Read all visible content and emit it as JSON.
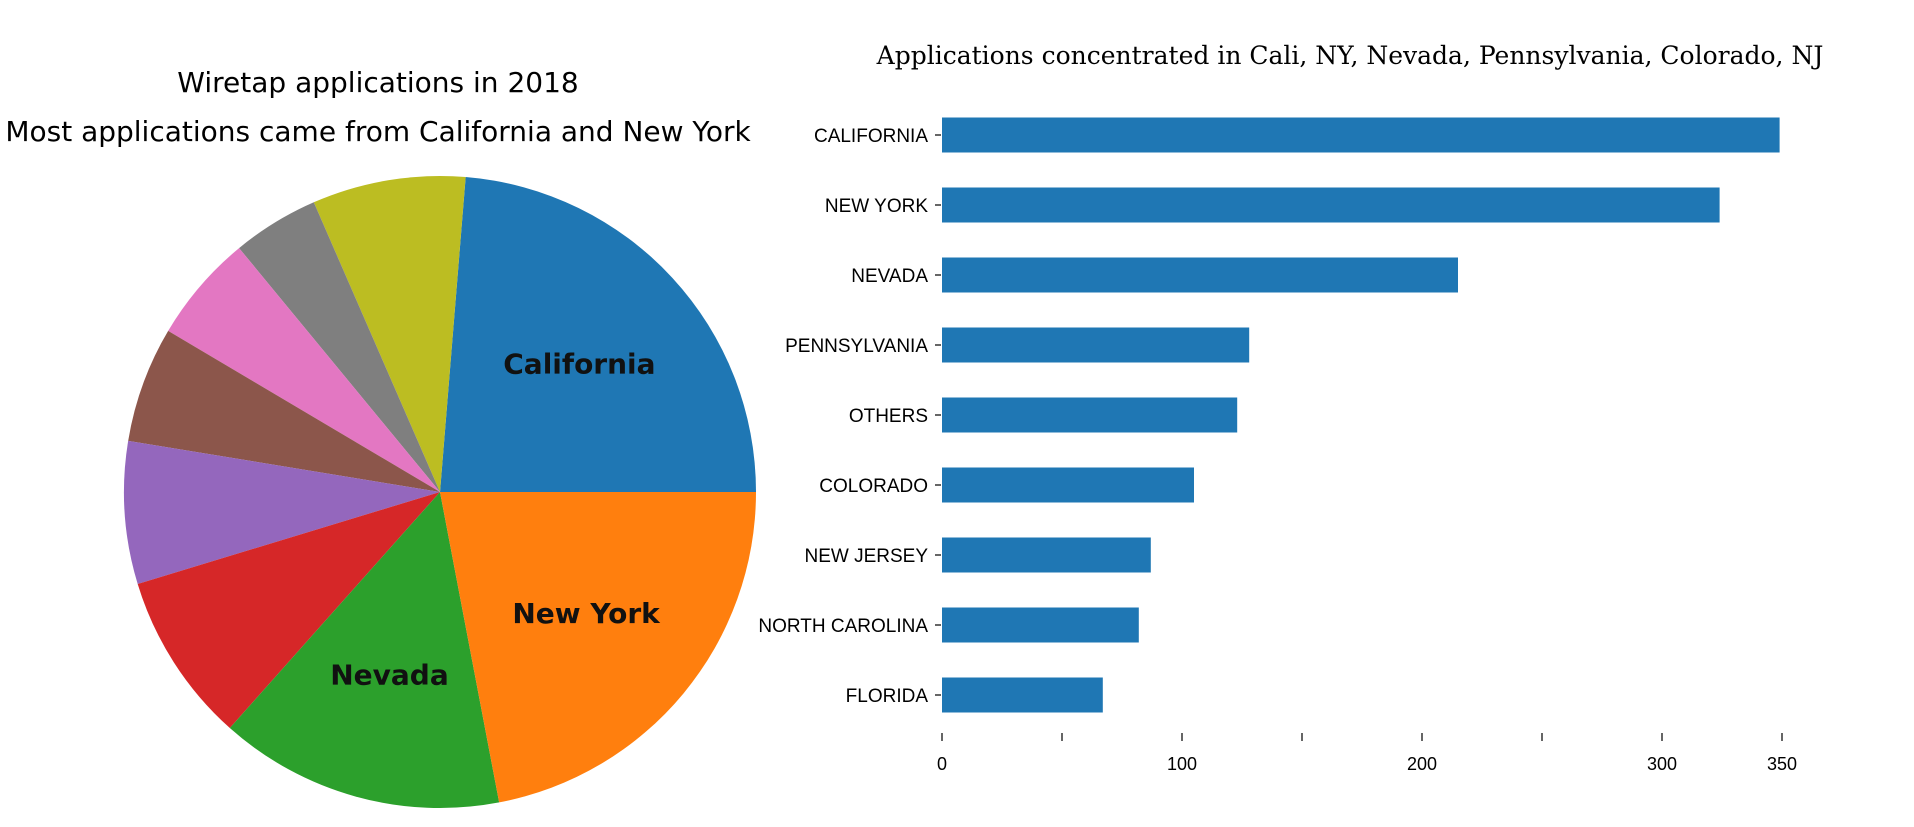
{
  "chart_data": [
    {
      "type": "pie",
      "title": "Wiretap applications in 2018",
      "subtitle": "Most applications came from California and New York",
      "slices": [
        {
          "label": "California",
          "value": 348,
          "color": "#1f77b4",
          "show_label": true
        },
        {
          "label": "",
          "value": 115,
          "color": "#bcbd22",
          "show_label": false
        },
        {
          "label": "",
          "value": 65,
          "color": "#7f7f7f",
          "show_label": false
        },
        {
          "label": "",
          "value": 81,
          "color": "#e377c2",
          "show_label": false
        },
        {
          "label": "",
          "value": 87,
          "color": "#8c564b",
          "show_label": false
        },
        {
          "label": "",
          "value": 107,
          "color": "#9467bd",
          "show_label": false
        },
        {
          "label": "",
          "value": 128,
          "color": "#d62728",
          "show_label": false
        },
        {
          "label": "Nevada",
          "value": 214,
          "color": "#2ca02c",
          "show_label": true
        },
        {
          "label": "New York",
          "value": 323,
          "color": "#ff7f0e",
          "show_label": true
        }
      ]
    },
    {
      "type": "bar",
      "orientation": "horizontal",
      "title": "Applications concentrated in Cali, NY, Nevada, Pennsylvania, Colorado, NJ",
      "categories": [
        "CALIFORNIA",
        "NEW YORK",
        "NEVADA",
        "PENNSYLVANIA",
        "OTHERS",
        "COLORADO",
        "NEW JERSEY",
        "NORTH CAROLINA",
        "FLORIDA"
      ],
      "values": [
        349,
        324,
        215,
        128,
        123,
        105,
        87,
        82,
        67
      ],
      "color": "#1f77b4",
      "xlim": [
        0,
        350
      ],
      "xticks": [
        0,
        50,
        100,
        150,
        200,
        250,
        300,
        350
      ],
      "xtick_labels": [
        "0",
        "",
        "100",
        "",
        "200",
        "",
        "300",
        "350"
      ]
    }
  ]
}
